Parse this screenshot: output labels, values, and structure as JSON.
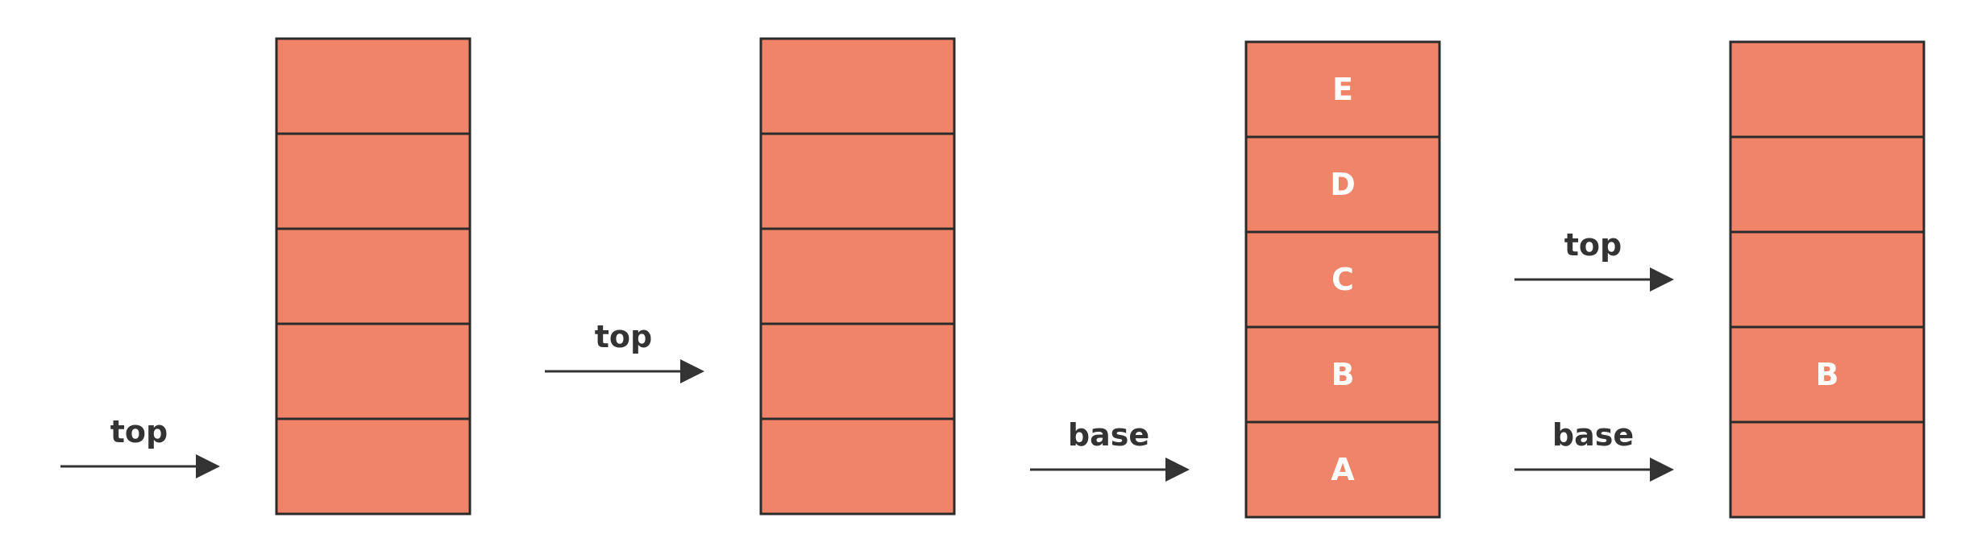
{
  "colors": {
    "cell_fill": "#f08468",
    "cell_border": "#2b2b2b",
    "arrow": "#333333",
    "text_dark": "#333333",
    "text_light": "#ffffff"
  },
  "stacks": [
    {
      "cells": [
        "",
        "",
        "",
        "",
        ""
      ],
      "pointers": [
        {
          "label": "top",
          "slot": 4
        }
      ]
    },
    {
      "cells": [
        "",
        "",
        "",
        "",
        ""
      ],
      "pointers": [
        {
          "label": "top",
          "slot": 3
        }
      ]
    },
    {
      "cells": [
        "E",
        "D",
        "C",
        "B",
        "A"
      ],
      "pointers": [
        {
          "label": "base",
          "slot": 4
        }
      ]
    },
    {
      "cells": [
        "",
        "",
        "",
        "B",
        ""
      ],
      "pointers": [
        {
          "label": "top",
          "slot": 2
        },
        {
          "label": "base",
          "slot": 4
        }
      ]
    }
  ]
}
